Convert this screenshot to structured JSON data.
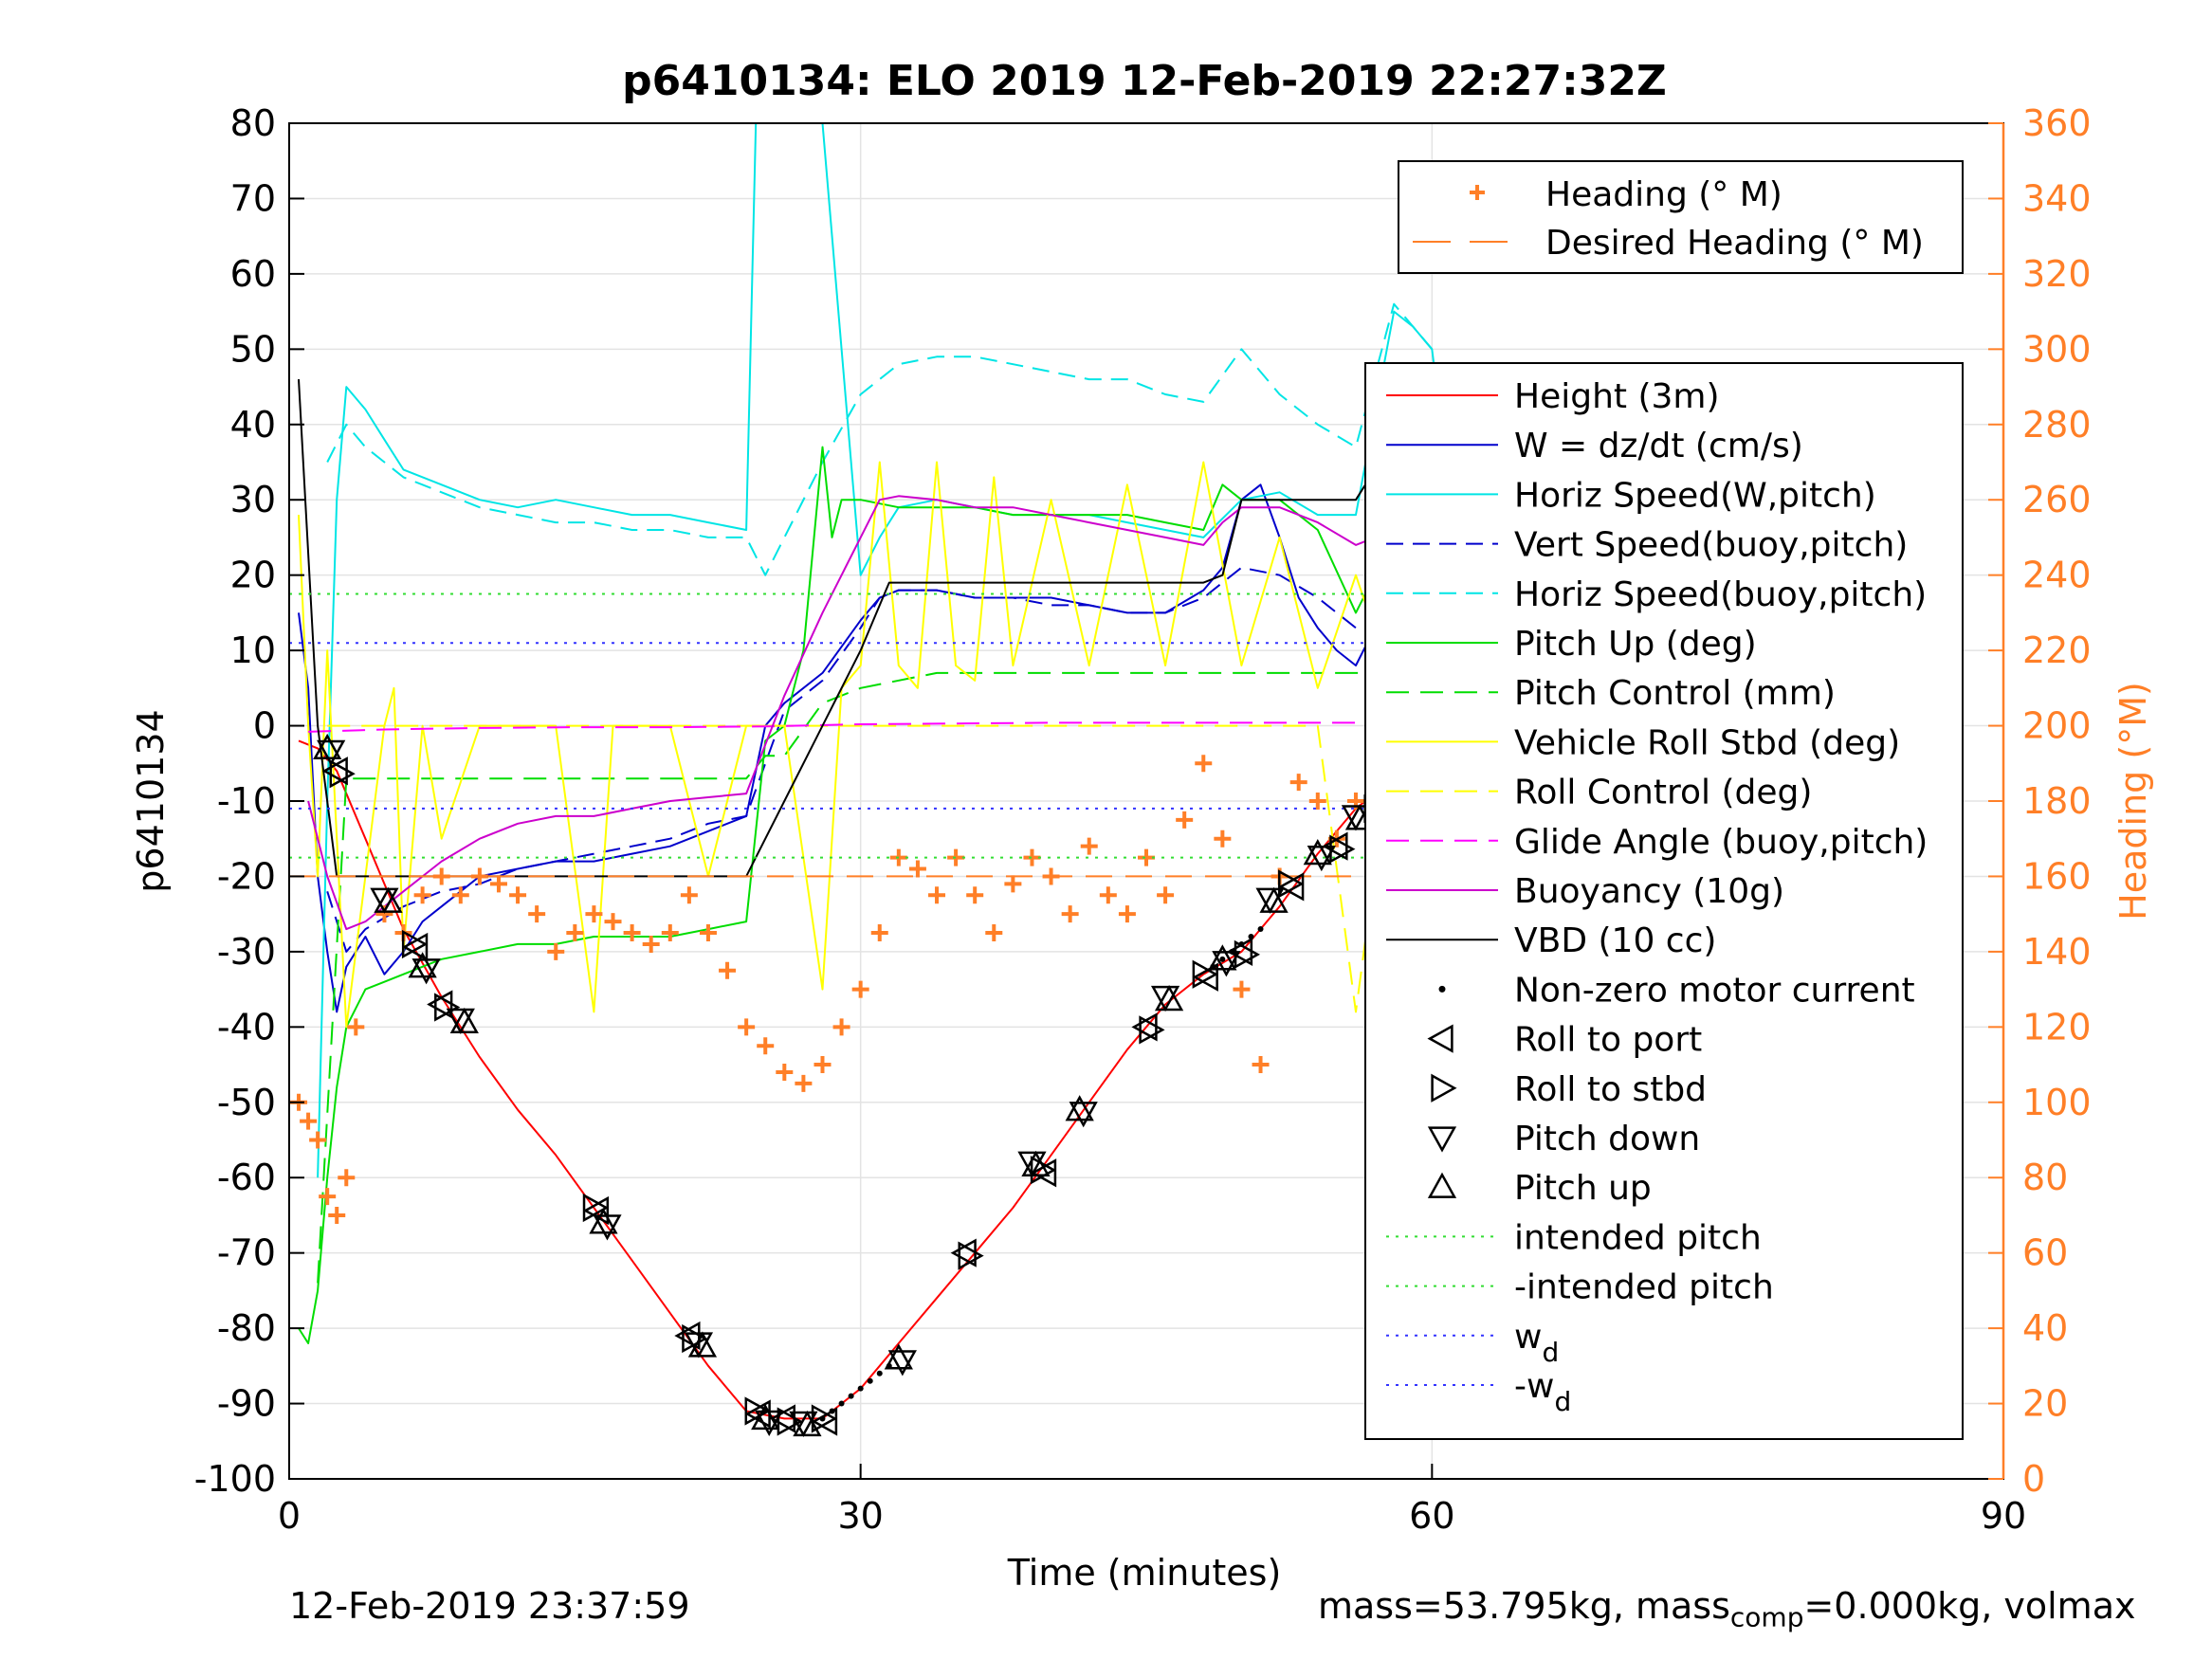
{
  "chart_data": {
    "type": "line",
    "title": "p6410134: ELO 2019 12-Feb-2019 22:27:32Z",
    "xlabel": "Time (minutes)",
    "ylabel": "p6410134",
    "y2label": "Heading (°M)",
    "xlim": [
      0,
      90
    ],
    "ylim": [
      -100,
      80
    ],
    "y2lim": [
      0,
      360
    ],
    "xticks": [
      "0",
      "30",
      "60",
      "90"
    ],
    "yticks": [
      "80",
      "70",
      "60",
      "50",
      "40",
      "30",
      "20",
      "10",
      "0",
      "-10",
      "-20",
      "-30",
      "-40",
      "-50",
      "-60",
      "-70",
      "-80",
      "-90",
      "-100"
    ],
    "y2ticks": [
      "360",
      "340",
      "320",
      "300",
      "280",
      "260",
      "240",
      "220",
      "200",
      "180",
      "160",
      "140",
      "120",
      "100",
      "80",
      "60",
      "40",
      "20",
      "0"
    ],
    "grid": true,
    "colors": {
      "heading": "#ff7f27",
      "height": "#ff0000",
      "w": "#0000cc",
      "horiz": "#00e5e5",
      "pitch": "#00dd00",
      "roll": "#ffff00",
      "glide": "#ff00ff",
      "buoy": "#cc00cc",
      "vbd": "#000000",
      "wd": "#3333ff",
      "intended": "#33dd33"
    },
    "legend_top": {
      "placement": "top-right",
      "entries": [
        "Heading (° M)",
        "Desired Heading (° M)"
      ]
    },
    "legend_main": {
      "placement": "right",
      "entries": [
        "Height (3m)",
        "W = dz/dt (cm/s)",
        "Horiz Speed(W,pitch)",
        "Vert Speed(buoy,pitch)",
        "Horiz Speed(buoy,pitch)",
        "Pitch Up (deg)",
        "Pitch Control (mm)",
        "Vehicle Roll Stbd (deg)",
        "Roll Control (deg)",
        "Glide Angle (buoy,pitch)",
        "Buoyancy (10g)",
        "VBD (10 cc)",
        "Non-zero motor current",
        "Roll to port",
        "Roll to stbd",
        "Pitch down",
        "Pitch up",
        "intended pitch",
        "-intended pitch",
        "w",
        "-w"
      ],
      "subscript": "d"
    },
    "series": [
      {
        "name": "Height (3m)",
        "x": [
          0.5,
          1.5,
          2.5,
          4,
          6,
          8,
          10,
          12,
          14,
          16,
          18,
          20,
          22,
          24,
          25,
          26,
          27,
          28,
          29,
          30,
          32,
          34,
          36,
          38,
          40,
          42,
          44,
          46,
          48,
          50,
          52,
          54,
          56,
          58,
          60,
          60.5
        ],
        "y": [
          -2,
          -3,
          -6,
          -15,
          -27,
          -36,
          -44,
          -51,
          -57,
          -64,
          -71,
          -78,
          -85,
          -91,
          -91.5,
          -92,
          -92,
          -92,
          -90,
          -88,
          -82,
          -76,
          -70,
          -64,
          -57,
          -50,
          -43,
          -37,
          -33,
          -30,
          -24,
          -17,
          -11,
          -7,
          -2,
          -1
        ]
      },
      {
        "name": "W = dz/dt (cm/s)",
        "x": [
          0.5,
          1,
          1.5,
          2,
          2.5,
          3,
          4,
          5,
          6,
          7,
          8,
          9,
          10,
          12,
          14,
          16,
          18,
          20,
          22,
          24,
          25,
          26,
          28,
          30,
          31,
          32,
          34,
          36,
          38,
          40,
          42,
          44,
          46,
          48,
          49,
          50,
          51,
          52,
          53,
          54,
          55,
          56,
          57,
          58,
          59,
          60,
          60.5
        ],
        "y": [
          15,
          5,
          -20,
          -30,
          -38,
          -32,
          -28,
          -33,
          -30,
          -26,
          -24,
          -22,
          -20,
          -19,
          -18,
          -18,
          -17,
          -16,
          -14,
          -12,
          0,
          3,
          7,
          14,
          17,
          18,
          18,
          17,
          17,
          17,
          16,
          15,
          15,
          18,
          21,
          30,
          32,
          25,
          17,
          13,
          10,
          8,
          13,
          28,
          30,
          14,
          2
        ]
      },
      {
        "name": "Horiz Speed(W,pitch)",
        "x": [
          1.5,
          2,
          2.5,
          3,
          4,
          5,
          6,
          8,
          10,
          12,
          14,
          16,
          18,
          20,
          22,
          24,
          24.5,
          25,
          26,
          28,
          30,
          31,
          32,
          34,
          36,
          38,
          40,
          42,
          44,
          46,
          48,
          50,
          52,
          54,
          56,
          58,
          59,
          60,
          60.5
        ],
        "y": [
          -60,
          -10,
          30,
          45,
          42,
          38,
          34,
          32,
          30,
          29,
          30,
          29,
          28,
          28,
          27,
          26,
          80,
          80,
          80,
          80,
          20,
          25,
          29,
          30,
          29,
          28,
          28,
          28,
          27,
          26,
          25,
          30,
          31,
          28,
          28,
          55,
          53,
          50,
          40
        ]
      },
      {
        "name": "Vert Speed(buoy,pitch)",
        "x": [
          2,
          3,
          4,
          6,
          8,
          10,
          12,
          14,
          16,
          18,
          20,
          22,
          24,
          26,
          28,
          30,
          31,
          32,
          34,
          36,
          38,
          40,
          42,
          44,
          46,
          48,
          50,
          52,
          54,
          56,
          58,
          60
        ],
        "y": [
          -22,
          -30,
          -27,
          -24,
          -22,
          -21,
          -19,
          -18,
          -17,
          -16,
          -15,
          -13,
          -12,
          2,
          6,
          13,
          17,
          18,
          18,
          17,
          17,
          16,
          16,
          15,
          15,
          17,
          21,
          20,
          17,
          13,
          14,
          13
        ]
      },
      {
        "name": "Horiz Speed(buoy,pitch)",
        "x": [
          2,
          3,
          4,
          6,
          8,
          10,
          12,
          14,
          16,
          18,
          20,
          22,
          24,
          25,
          26,
          28,
          30,
          32,
          34,
          36,
          38,
          40,
          42,
          44,
          46,
          48,
          50,
          52,
          54,
          56,
          58,
          60
        ],
        "y": [
          35,
          40,
          37,
          33,
          31,
          29,
          28,
          27,
          27,
          26,
          26,
          25,
          25,
          20,
          25,
          35,
          44,
          48,
          49,
          49,
          48,
          47,
          46,
          46,
          44,
          43,
          50,
          44,
          40,
          37,
          56,
          50
        ]
      },
      {
        "name": "Pitch Up (deg)",
        "x": [
          0.5,
          1,
          1.5,
          2,
          2.5,
          3,
          4,
          5,
          6,
          8,
          10,
          12,
          14,
          16,
          18,
          20,
          22,
          24,
          25,
          26,
          27,
          28,
          28.5,
          29,
          30,
          32,
          34,
          36,
          38,
          40,
          42,
          44,
          46,
          48,
          49,
          50,
          52,
          54,
          56,
          57,
          58,
          59,
          60,
          60.5
        ],
        "y": [
          -80,
          -82,
          -75,
          -60,
          -48,
          -40,
          -35,
          -34,
          -33,
          -31,
          -30,
          -29,
          -29,
          -28,
          -28,
          -28,
          -27,
          -26,
          -2,
          0,
          10,
          37,
          25,
          30,
          30,
          29,
          29,
          29,
          28,
          28,
          28,
          28,
          27,
          26,
          32,
          30,
          30,
          26,
          15,
          20,
          20,
          27,
          22,
          20
        ]
      },
      {
        "name": "Pitch Control (mm)",
        "x": [
          1.5,
          3,
          6,
          10,
          15,
          20,
          24,
          25,
          26,
          28,
          30,
          34,
          38,
          42,
          46,
          50,
          54,
          58,
          60
        ],
        "y": [
          -74,
          -7,
          -7,
          -7,
          -7,
          -7,
          -7,
          -4,
          -4,
          3,
          5,
          7,
          7,
          7,
          7,
          7,
          7,
          7,
          7
        ]
      },
      {
        "name": "Vehicle Roll Stbd (deg)",
        "x": [
          0.5,
          1,
          1.5,
          2,
          3,
          4,
          5,
          5.5,
          6,
          7,
          8,
          10,
          14,
          16,
          17,
          18,
          20,
          22,
          24,
          26,
          28,
          29,
          30,
          31,
          32,
          33,
          34,
          35,
          36,
          37,
          38,
          40,
          42,
          44,
          46,
          48,
          50,
          52,
          54,
          56,
          58,
          60
        ],
        "y": [
          28,
          0,
          -20,
          10,
          -40,
          -20,
          0,
          5,
          -30,
          0,
          -15,
          0,
          0,
          -38,
          0,
          0,
          0,
          -20,
          0,
          0,
          -35,
          5,
          8,
          35,
          8,
          5,
          35,
          8,
          6,
          33,
          8,
          30,
          8,
          32,
          8,
          35,
          8,
          25,
          5,
          20,
          5,
          35
        ]
      },
      {
        "name": "Roll Control (deg)",
        "x": [
          2,
          4,
          6,
          8,
          10,
          14,
          18,
          22,
          24,
          26,
          28,
          30,
          34,
          38,
          42,
          46,
          50,
          54,
          56,
          58,
          60
        ],
        "y": [
          0,
          0,
          0,
          0,
          0,
          0,
          0,
          0,
          0,
          0,
          0,
          0,
          0,
          0,
          0,
          0,
          0,
          0,
          -38,
          0,
          0
        ]
      },
      {
        "name": "Glide Angle (buoy,pitch)",
        "x": [
          1,
          5,
          10,
          15,
          20,
          25,
          30,
          35,
          40,
          45,
          50,
          55,
          60
        ],
        "y": [
          -0.8,
          -0.5,
          -0.3,
          -0.2,
          -0.2,
          -0.1,
          0.2,
          0.3,
          0.4,
          0.4,
          0.4,
          0.4,
          0.4
        ]
      },
      {
        "name": "Buoyancy (10g)",
        "x": [
          1,
          2,
          3,
          4,
          6,
          8,
          10,
          12,
          14,
          16,
          18,
          20,
          22,
          24,
          26,
          28,
          30,
          31,
          32,
          34,
          36,
          38,
          40,
          42,
          44,
          46,
          48,
          49,
          50,
          52,
          54,
          56,
          57,
          58,
          59,
          60
        ],
        "y": [
          -10,
          -20,
          -27,
          -26,
          -22,
          -18,
          -15,
          -13,
          -12,
          -12,
          -11,
          -10,
          -9.5,
          -9,
          4,
          15,
          25,
          30,
          30.5,
          30,
          29,
          29,
          28,
          27,
          26,
          25,
          24,
          27,
          29,
          29,
          27,
          24,
          25,
          35,
          38,
          37
        ]
      },
      {
        "name": "VBD (10 cc)",
        "x": [
          0.5,
          1.5,
          2.5,
          3,
          10,
          20,
          24,
          26,
          28,
          30,
          31.5,
          35,
          40,
          45,
          48,
          49,
          50,
          55,
          56,
          57,
          58,
          59,
          60
        ],
        "y": [
          46,
          0,
          -20,
          -20,
          -20,
          -20,
          -20,
          -10,
          0,
          10,
          19,
          19,
          19,
          19,
          19,
          20,
          30,
          30,
          30,
          34,
          34,
          45,
          45
        ]
      },
      {
        "name": "Heading (° M)",
        "axis": "right",
        "x": [
          0.5,
          1,
          1.5,
          2,
          2.5,
          3,
          3.5,
          5,
          6,
          7,
          8,
          9,
          10,
          11,
          12,
          13,
          14,
          15,
          16,
          17,
          18,
          19,
          20,
          21,
          22,
          23,
          24,
          25,
          26,
          27,
          28,
          29,
          30,
          31,
          32,
          33,
          34,
          35,
          36,
          37,
          38,
          39,
          40,
          41,
          42,
          43,
          44,
          45,
          46,
          47,
          48,
          49,
          50,
          51,
          52,
          53,
          54,
          55,
          56,
          57,
          58,
          59,
          60,
          60.5
        ],
        "y": [
          100,
          95,
          90,
          75,
          70,
          80,
          120,
          150,
          145,
          155,
          160,
          155,
          160,
          158,
          155,
          150,
          140,
          145,
          150,
          148,
          145,
          142,
          145,
          155,
          145,
          135,
          120,
          115,
          108,
          105,
          110,
          120,
          130,
          145,
          165,
          162,
          155,
          165,
          155,
          145,
          158,
          165,
          160,
          150,
          168,
          155,
          150,
          165,
          155,
          175,
          190,
          170,
          130,
          110,
          160,
          185,
          180,
          170,
          180,
          150,
          110,
          130,
          185,
          180
        ]
      },
      {
        "name": "Desired Heading (° M)",
        "axis": "right",
        "x": [
          0,
          60
        ],
        "y": [
          160,
          160
        ]
      },
      {
        "name": "intended pitch",
        "x": [
          0,
          60
        ],
        "y": [
          17.5,
          17.5
        ]
      },
      {
        "name": "-intended pitch",
        "x": [
          0,
          60
        ],
        "y": [
          -17.5,
          -17.5
        ]
      },
      {
        "name": "w_d",
        "x": [
          0,
          60
        ],
        "y": [
          11,
          11
        ]
      },
      {
        "name": "-w_d",
        "x": [
          0,
          60
        ],
        "y": [
          -11,
          -11
        ]
      }
    ],
    "pitch_markers": {
      "x": [
        2,
        2.5,
        5,
        6.5,
        7,
        8,
        9,
        16,
        16.5,
        21,
        21.5,
        24.5,
        25,
        26,
        27,
        28,
        32,
        35.5,
        39,
        39.5,
        41.5,
        45,
        46,
        48,
        49,
        50,
        51.5,
        52.5,
        54,
        55,
        56,
        57,
        59.5,
        60
      ],
      "y": [
        -3,
        -6,
        -23,
        -29,
        -32,
        -37,
        -39,
        -64,
        -66,
        -81,
        -82,
        -91,
        -92,
        -92,
        -92.5,
        -92,
        -84,
        -70,
        -58,
        -59,
        -51,
        -40,
        -36,
        -33,
        -31,
        -30,
        -23,
        -21,
        -17,
        -16,
        -12,
        -11,
        -3,
        -2
      ]
    },
    "motor_points": {
      "x": [
        28,
        28.5,
        29,
        29.5,
        30,
        30.5,
        31,
        31.5,
        48.5,
        49,
        49.5,
        50,
        50.5,
        51,
        57.5,
        58,
        58.5,
        59,
        59.5
      ],
      "y": [
        -92,
        -91,
        -90,
        -89,
        -88,
        -87,
        -86,
        -85,
        -32,
        -31,
        -30,
        -29,
        -28,
        -27,
        -10,
        -8,
        -6,
        -5,
        -4
      ]
    },
    "footer_left": "12-Feb-2019 23:37:59",
    "footer_right": {
      "part1": "mass=53.795kg, mass",
      "sub": "comp",
      "part2": "=0.000kg, volmax"
    }
  }
}
